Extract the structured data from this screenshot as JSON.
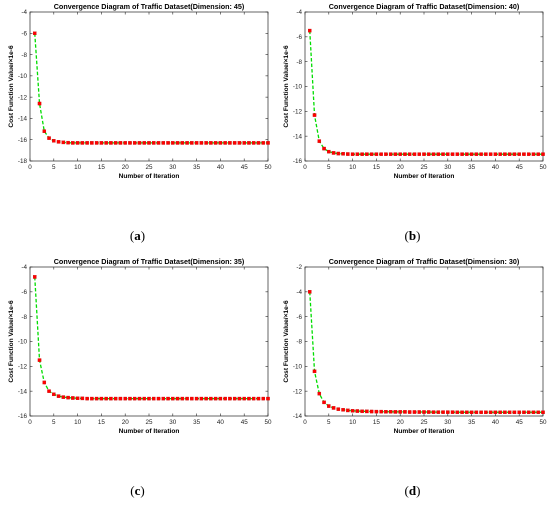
{
  "chart_data": [
    {
      "type": "line",
      "title": "Convergence Diagram of Traffic Dataset(Dimension: 45)",
      "xlabel": "Number of Iteration",
      "ylabel": "Cost Function Value/×1e-6",
      "xlim": [
        0,
        50
      ],
      "ylim": [
        -18,
        -4
      ],
      "xticks": [
        "0",
        "5",
        "10",
        "15",
        "20",
        "25",
        "30",
        "35",
        "40",
        "45",
        "50"
      ],
      "yticks": [
        "-4",
        "-6",
        "-8",
        "-10",
        "-12",
        "-14",
        "-16",
        "-18"
      ],
      "caption_letter": "a",
      "series": [
        {
          "color": "#ff0000",
          "line_color": "#00dd00",
          "x": [
            1,
            2,
            3,
            4,
            5,
            6,
            7,
            8,
            9,
            10,
            11,
            12,
            13,
            14,
            15,
            16,
            17,
            18,
            19,
            20,
            21,
            22,
            23,
            24,
            25,
            26,
            27,
            28,
            29,
            30,
            31,
            32,
            33,
            34,
            35,
            36,
            37,
            38,
            39,
            40,
            41,
            42,
            43,
            44,
            45,
            46,
            47,
            48,
            49,
            50
          ],
          "values": [
            -6.0,
            -12.6,
            -15.2,
            -15.85,
            -16.1,
            -16.2,
            -16.25,
            -16.28,
            -16.3,
            -16.3,
            -16.3,
            -16.3,
            -16.3,
            -16.3,
            -16.3,
            -16.3,
            -16.3,
            -16.3,
            -16.3,
            -16.3,
            -16.3,
            -16.3,
            -16.3,
            -16.3,
            -16.3,
            -16.3,
            -16.3,
            -16.3,
            -16.3,
            -16.3,
            -16.3,
            -16.3,
            -16.3,
            -16.3,
            -16.3,
            -16.3,
            -16.3,
            -16.3,
            -16.3,
            -16.3,
            -16.3,
            -16.3,
            -16.3,
            -16.3,
            -16.3,
            -16.3,
            -16.3,
            -16.3,
            -16.3,
            -16.3
          ]
        }
      ]
    },
    {
      "type": "line",
      "title": "Convergence Diagram of Traffic Dataset(Dimension: 40)",
      "xlabel": "Number of Iteration",
      "ylabel": "Cost Function Value/×1e-6",
      "xlim": [
        0,
        50
      ],
      "ylim": [
        -16,
        -4
      ],
      "xticks": [
        "0",
        "5",
        "10",
        "15",
        "20",
        "25",
        "30",
        "35",
        "40",
        "45",
        "50"
      ],
      "yticks": [
        "-4",
        "-6",
        "-8",
        "-10",
        "-12",
        "-14",
        "-16"
      ],
      "caption_letter": "b",
      "series": [
        {
          "color": "#ff0000",
          "line_color": "#00dd00",
          "x": [
            1,
            2,
            3,
            4,
            5,
            6,
            7,
            8,
            9,
            10,
            11,
            12,
            13,
            14,
            15,
            16,
            17,
            18,
            19,
            20,
            21,
            22,
            23,
            24,
            25,
            26,
            27,
            28,
            29,
            30,
            31,
            32,
            33,
            34,
            35,
            36,
            37,
            38,
            39,
            40,
            41,
            42,
            43,
            44,
            45,
            46,
            47,
            48,
            49,
            50
          ],
          "values": [
            -5.5,
            -12.3,
            -14.4,
            -15.0,
            -15.25,
            -15.35,
            -15.4,
            -15.42,
            -15.44,
            -15.45,
            -15.45,
            -15.45,
            -15.45,
            -15.45,
            -15.45,
            -15.45,
            -15.45,
            -15.45,
            -15.45,
            -15.45,
            -15.45,
            -15.45,
            -15.45,
            -15.45,
            -15.45,
            -15.45,
            -15.45,
            -15.45,
            -15.45,
            -15.45,
            -15.45,
            -15.45,
            -15.45,
            -15.45,
            -15.45,
            -15.45,
            -15.45,
            -15.45,
            -15.45,
            -15.45,
            -15.45,
            -15.45,
            -15.45,
            -15.45,
            -15.45,
            -15.45,
            -15.45,
            -15.45,
            -15.45,
            -15.45
          ]
        }
      ]
    },
    {
      "type": "line",
      "title": "Convergence Diagram of Traffic Dataset(Dimension: 35)",
      "xlabel": "Number of Iteration",
      "ylabel": "Cost Function Value/×1e-6",
      "xlim": [
        0,
        50
      ],
      "ylim": [
        -16,
        -4
      ],
      "xticks": [
        "0",
        "5",
        "10",
        "15",
        "20",
        "25",
        "30",
        "35",
        "40",
        "45",
        "50"
      ],
      "yticks": [
        "-4",
        "-6",
        "-8",
        "-10",
        "-12",
        "-14",
        "-16"
      ],
      "caption_letter": "c",
      "series": [
        {
          "color": "#ff0000",
          "line_color": "#00dd00",
          "x": [
            1,
            2,
            3,
            4,
            5,
            6,
            7,
            8,
            9,
            10,
            11,
            12,
            13,
            14,
            15,
            16,
            17,
            18,
            19,
            20,
            21,
            22,
            23,
            24,
            25,
            26,
            27,
            28,
            29,
            30,
            31,
            32,
            33,
            34,
            35,
            36,
            37,
            38,
            39,
            40,
            41,
            42,
            43,
            44,
            45,
            46,
            47,
            48,
            49,
            50
          ],
          "values": [
            -4.8,
            -11.5,
            -13.3,
            -14.0,
            -14.25,
            -14.4,
            -14.48,
            -14.52,
            -14.55,
            -14.57,
            -14.58,
            -14.6,
            -14.6,
            -14.6,
            -14.6,
            -14.6,
            -14.6,
            -14.6,
            -14.6,
            -14.6,
            -14.6,
            -14.6,
            -14.6,
            -14.6,
            -14.6,
            -14.6,
            -14.6,
            -14.6,
            -14.6,
            -14.6,
            -14.6,
            -14.6,
            -14.6,
            -14.6,
            -14.6,
            -14.6,
            -14.6,
            -14.6,
            -14.6,
            -14.6,
            -14.6,
            -14.6,
            -14.6,
            -14.6,
            -14.6,
            -14.6,
            -14.6,
            -14.6,
            -14.6,
            -14.6
          ]
        }
      ]
    },
    {
      "type": "line",
      "title": "Convergence Diagram of Traffic Dataset(Dimension: 30)",
      "xlabel": "Number of Iteration",
      "ylabel": "Cost Function Value/×1e-6",
      "xlim": [
        0,
        50
      ],
      "ylim": [
        -14,
        -2
      ],
      "xticks": [
        "0",
        "5",
        "10",
        "15",
        "20",
        "25",
        "30",
        "35",
        "40",
        "45",
        "50"
      ],
      "yticks": [
        "-2",
        "-4",
        "-6",
        "-8",
        "-10",
        "-12",
        "-14"
      ],
      "caption_letter": "d",
      "series": [
        {
          "color": "#ff0000",
          "line_color": "#00dd00",
          "x": [
            1,
            2,
            3,
            4,
            5,
            6,
            7,
            8,
            9,
            10,
            11,
            12,
            13,
            14,
            15,
            16,
            17,
            18,
            19,
            20,
            21,
            22,
            23,
            24,
            25,
            26,
            27,
            28,
            29,
            30,
            31,
            32,
            33,
            34,
            35,
            36,
            37,
            38,
            39,
            40,
            41,
            42,
            43,
            44,
            45,
            46,
            47,
            48,
            49,
            50
          ],
          "values": [
            -4.0,
            -10.4,
            -12.2,
            -12.9,
            -13.2,
            -13.35,
            -13.45,
            -13.5,
            -13.55,
            -13.58,
            -13.6,
            -13.62,
            -13.63,
            -13.64,
            -13.65,
            -13.65,
            -13.66,
            -13.66,
            -13.67,
            -13.67,
            -13.67,
            -13.68,
            -13.68,
            -13.68,
            -13.68,
            -13.68,
            -13.69,
            -13.69,
            -13.69,
            -13.69,
            -13.69,
            -13.7,
            -13.7,
            -13.7,
            -13.7,
            -13.7,
            -13.7,
            -13.7,
            -13.7,
            -13.7,
            -13.7,
            -13.7,
            -13.7,
            -13.7,
            -13.7,
            -13.7,
            -13.7,
            -13.7,
            -13.7,
            -13.7
          ]
        }
      ]
    }
  ]
}
